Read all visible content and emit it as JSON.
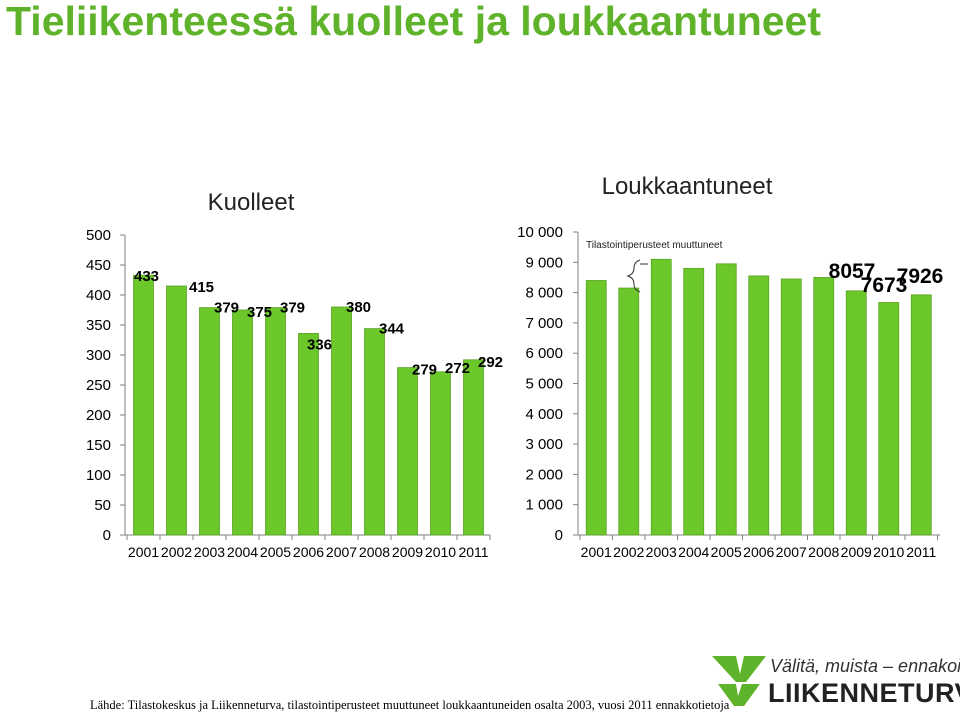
{
  "page": {
    "title": "Tieliikenteessä kuolleet ja loukkaantuneet",
    "source": "Lähde: Tilastokeskus ja Liikenneturva, tilastointiperusteet muuttuneet loukkaantuneiden osalta 2003, vuosi 2011 ennakkotietoja"
  },
  "logo": {
    "slogan": "Välitä, muista – ennakoi.",
    "brand": "LIIKENNETURVA"
  },
  "colors": {
    "bar": "#6cc72b",
    "bar_edge": "#5aa322",
    "title": "#5fb32a",
    "axis": "#808080",
    "brand_green": "#5fb32a"
  },
  "chart_data": [
    {
      "type": "bar",
      "title": "Kuolleet",
      "categories": [
        "2001",
        "2002",
        "2003",
        "2004",
        "2005",
        "2006",
        "2007",
        "2008",
        "2009",
        "2010",
        "2011"
      ],
      "values": [
        433,
        415,
        379,
        375,
        379,
        336,
        380,
        344,
        279,
        272,
        292
      ],
      "data_labels": [
        "433",
        "415",
        "379",
        "375",
        "379",
        "336",
        "380",
        "344",
        "279",
        "272",
        "292"
      ],
      "ylim": [
        0,
        500
      ],
      "yticks": [
        0,
        50,
        100,
        150,
        200,
        250,
        300,
        350,
        400,
        450,
        500
      ],
      "ytick_labels": [
        "0",
        "50",
        "100",
        "150",
        "200",
        "250",
        "300",
        "350",
        "400",
        "450",
        "500"
      ],
      "xlabel": "",
      "ylabel": "",
      "grid": false
    },
    {
      "type": "bar",
      "title": "Loukkaantuneet",
      "categories": [
        "2001",
        "2002",
        "2003",
        "2004",
        "2005",
        "2006",
        "2007",
        "2008",
        "2009",
        "2010",
        "2011"
      ],
      "values": [
        8400,
        8150,
        9100,
        8800,
        8950,
        8550,
        8450,
        8500,
        8057,
        7673,
        7926
      ],
      "data_labels": [
        "",
        "",
        "",
        "",
        "",
        "",
        "",
        "",
        "8057",
        "7673",
        "7926"
      ],
      "ylim": [
        0,
        10000
      ],
      "yticks": [
        0,
        1000,
        2000,
        3000,
        4000,
        5000,
        6000,
        7000,
        8000,
        9000,
        10000
      ],
      "ytick_labels": [
        "0",
        "1 000",
        "2 000",
        "3 000",
        "4 000",
        "5 000",
        "6 000",
        "7 000",
        "8 000",
        "9 000",
        "10 000"
      ],
      "annotation": "Tilastointiperusteet muuttuneet",
      "xlabel": "",
      "ylabel": "",
      "grid": false
    }
  ]
}
